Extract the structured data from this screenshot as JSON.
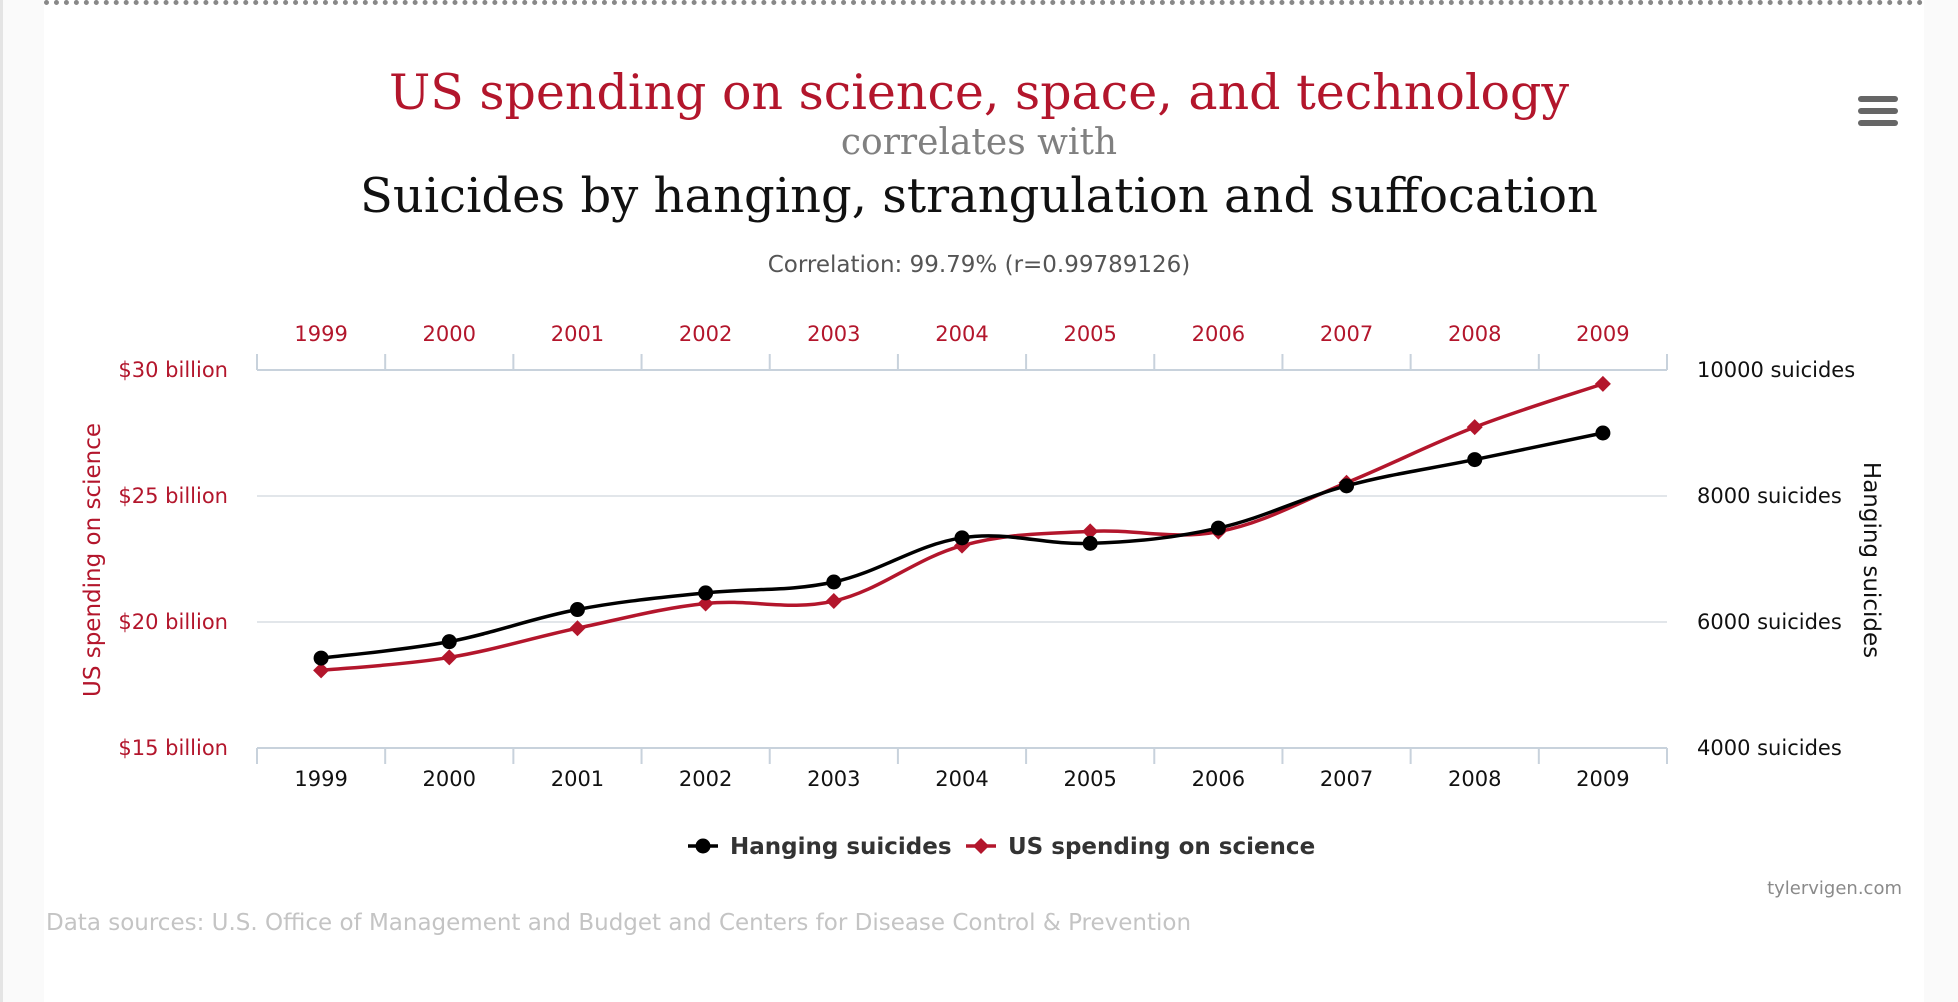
{
  "header": {
    "title_primary": "US spending on science, space, and technology",
    "title_connector": "correlates with",
    "title_secondary": "Suicides by hanging, strangulation and suffocation",
    "correlation": "Correlation: 99.79% (r=0.99789126)"
  },
  "menu": {
    "icon": "hamburger-menu-icon"
  },
  "chart_data": {
    "type": "line",
    "x": [
      1999,
      2000,
      2001,
      2002,
      2003,
      2004,
      2005,
      2006,
      2007,
      2008,
      2009
    ],
    "top_axis_labels": [
      "1999",
      "2000",
      "2001",
      "2002",
      "2003",
      "2004",
      "2005",
      "2006",
      "2007",
      "2008",
      "2009"
    ],
    "bottom_axis_labels": [
      "1999",
      "2000",
      "2001",
      "2002",
      "2003",
      "2004",
      "2005",
      "2006",
      "2007",
      "2008",
      "2009"
    ],
    "left_axis": {
      "title": "US spending on science",
      "ticks": [
        "$30 billion",
        "$25 billion",
        "$20 billion",
        "$15 billion"
      ],
      "tick_values": [
        30,
        25,
        20,
        15
      ],
      "range": [
        15,
        30
      ],
      "color": "#b3162c"
    },
    "right_axis": {
      "title": "Hanging suicides",
      "ticks": [
        "10000 suicides",
        "8000 suicides",
        "6000 suicides",
        "4000 suicides"
      ],
      "tick_values": [
        10000,
        8000,
        6000,
        4000
      ],
      "range": [
        4000,
        10000
      ],
      "color": "#000000"
    },
    "series": [
      {
        "name": "Hanging suicides",
        "axis": "right",
        "marker": "circle",
        "color": "#000000",
        "values": [
          5427,
          5688,
          6198,
          6462,
          6635,
          7336,
          7248,
          7491,
          8161,
          8578,
          9000
        ]
      },
      {
        "name": "US spending on science",
        "axis": "left",
        "marker": "diamond",
        "color": "#b3162c",
        "values": [
          18.079,
          18.594,
          19.753,
          20.734,
          20.831,
          23.029,
          23.597,
          23.584,
          25.525,
          27.731,
          29.449
        ]
      }
    ],
    "grid": true,
    "legend_position": "bottom-center"
  },
  "footer": {
    "credit": "tylervigen.com",
    "sources": "Data sources: U.S. Office of Management and Budget and Centers for Disease Control & Prevention"
  }
}
